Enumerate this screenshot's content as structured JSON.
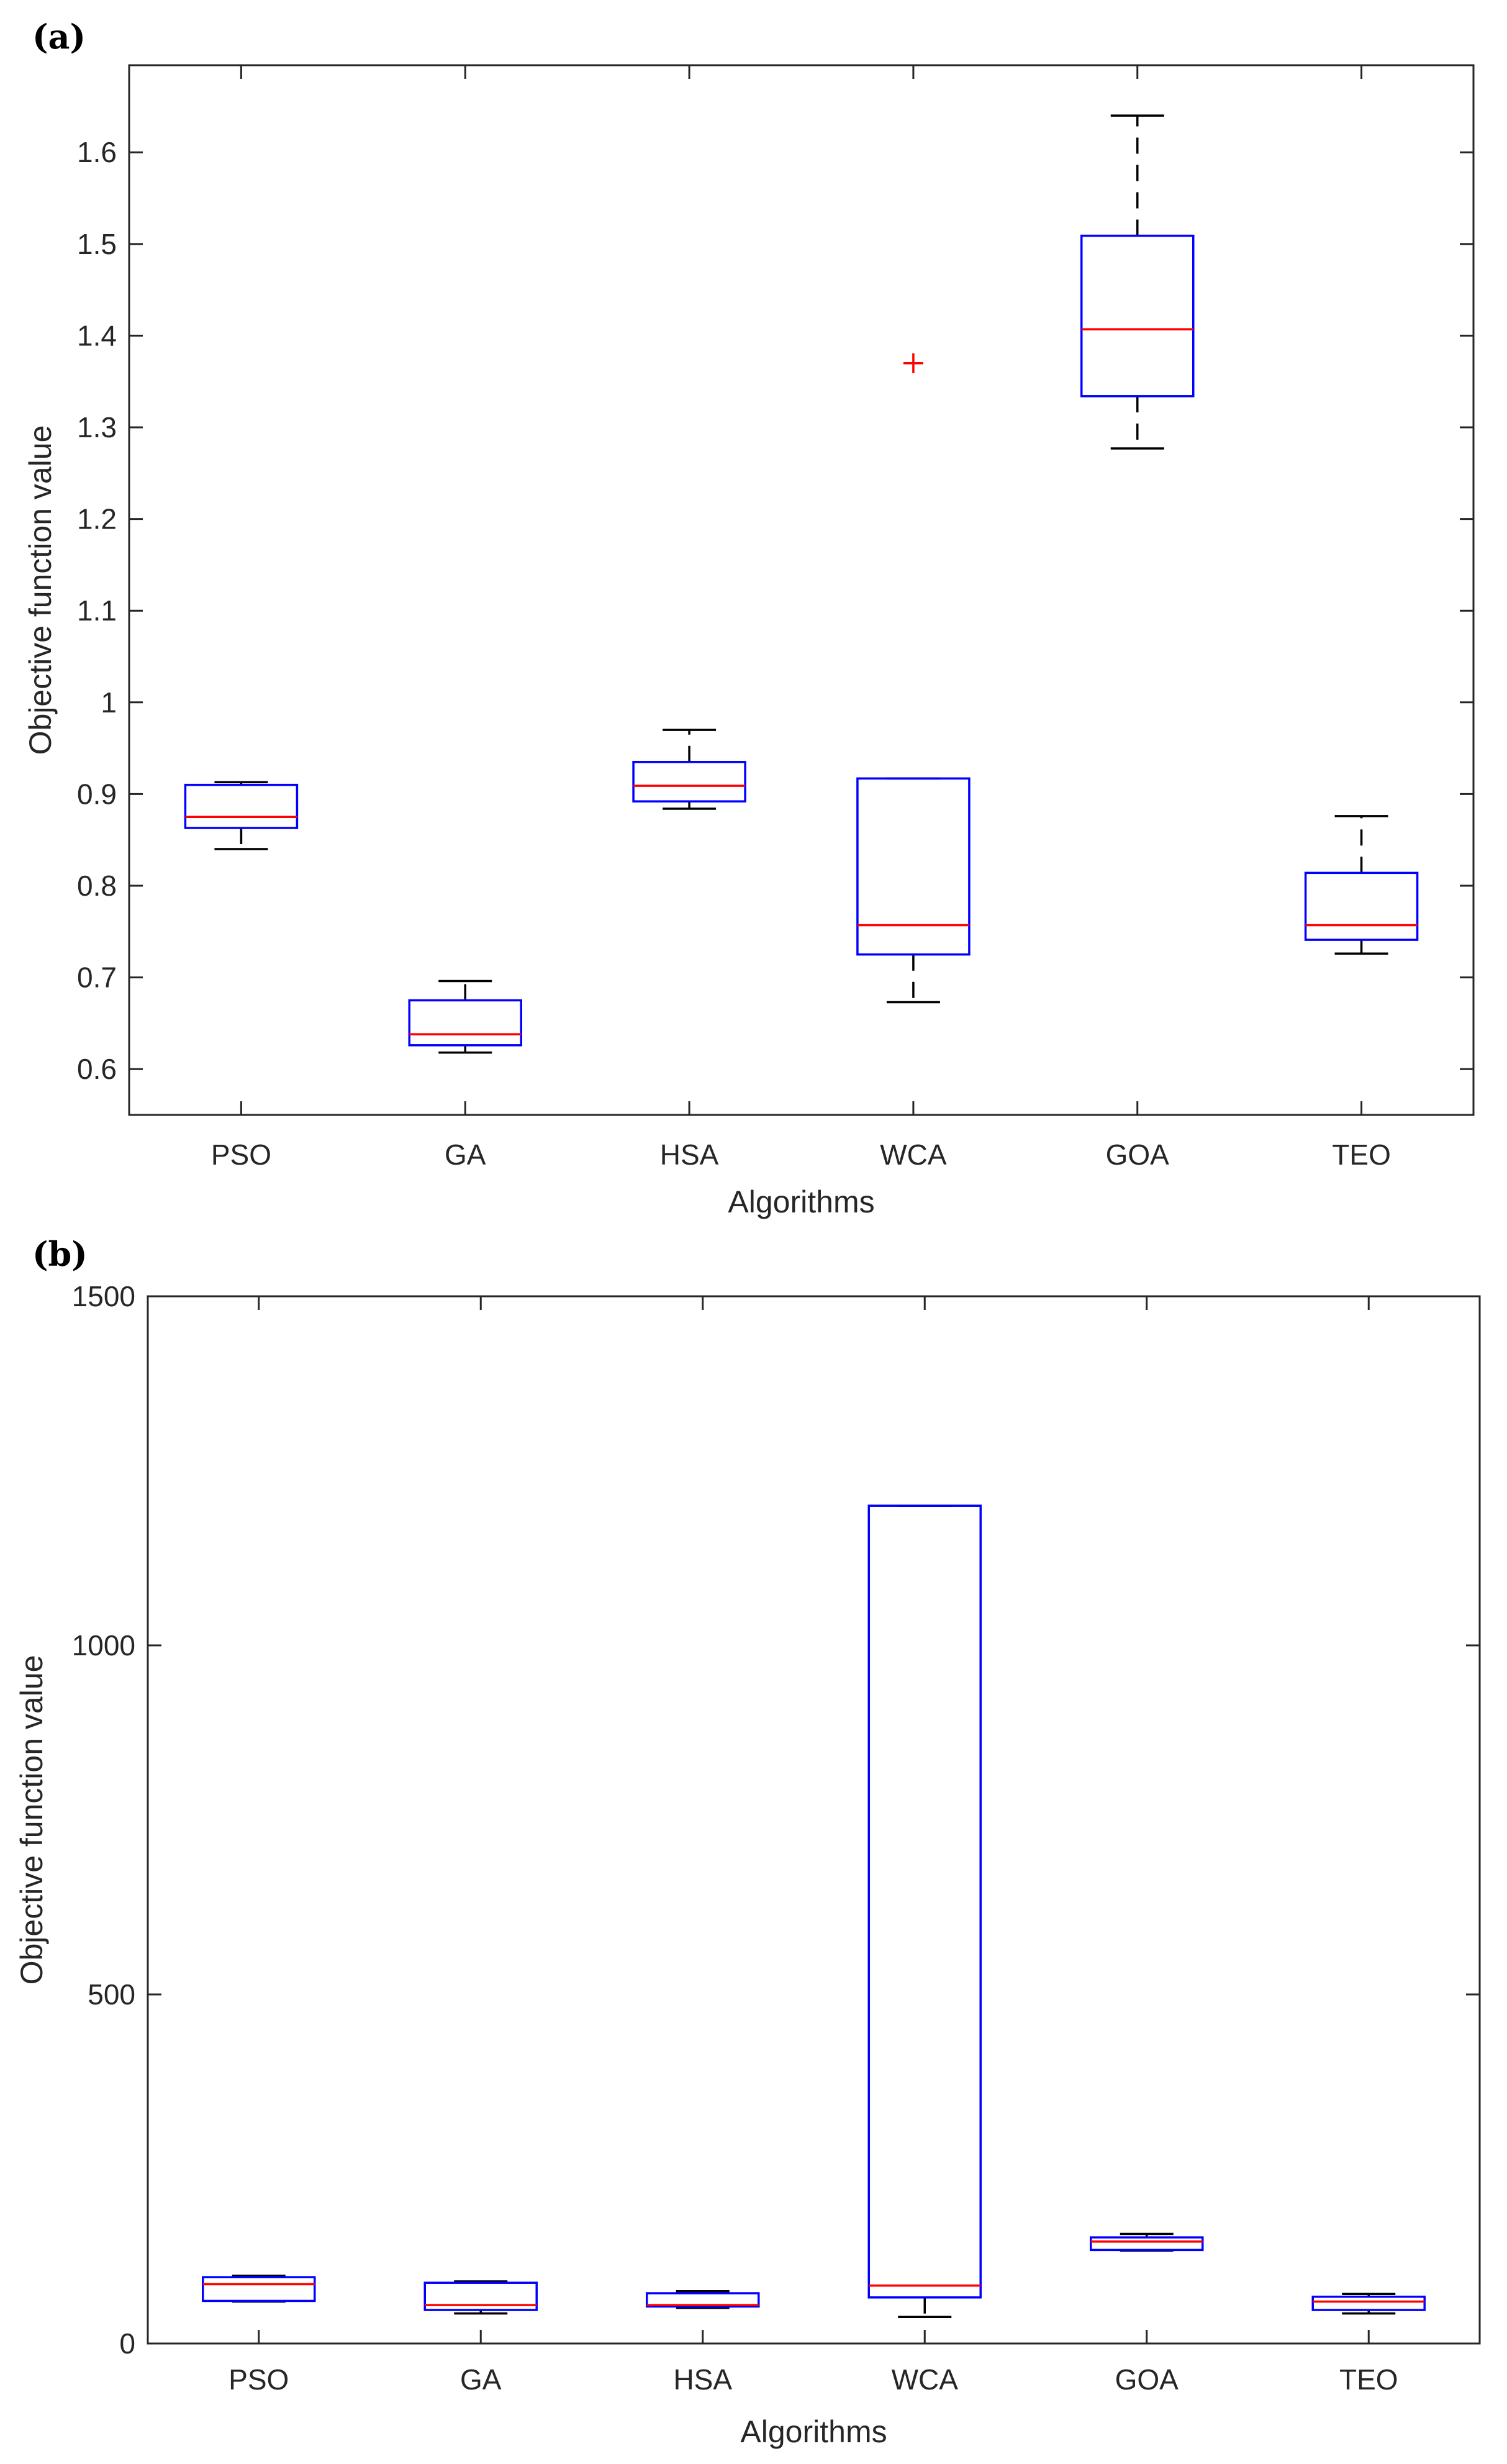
{
  "chart_data": [
    {
      "panel_label": "(a)",
      "type": "box",
      "xlabel": "Algorithms",
      "ylabel": "Objective function value",
      "ylim": [
        0.55,
        1.695
      ],
      "yticks": [
        0.6,
        0.7,
        0.8,
        0.9,
        1,
        1.1,
        1.2,
        1.3,
        1.4,
        1.5,
        1.6
      ],
      "ytick_labels": [
        "0.6",
        "0.7",
        "0.8",
        "0.9",
        "1",
        "1.1",
        "1.2",
        "1.3",
        "1.4",
        "1.5",
        "1.6"
      ],
      "categories": [
        "PSO",
        "GA",
        "HSA",
        "WCA",
        "GOA",
        "TEO"
      ],
      "boxes": [
        {
          "name": "PSO",
          "whisker_low": 0.84,
          "q1": 0.863,
          "median": 0.875,
          "q3": 0.91,
          "whisker_high": 0.913,
          "outliers": []
        },
        {
          "name": "GA",
          "whisker_low": 0.618,
          "q1": 0.626,
          "median": 0.638,
          "q3": 0.675,
          "whisker_high": 0.696,
          "outliers": []
        },
        {
          "name": "HSA",
          "whisker_low": 0.884,
          "q1": 0.892,
          "median": 0.909,
          "q3": 0.935,
          "whisker_high": 0.97,
          "outliers": []
        },
        {
          "name": "WCA",
          "whisker_low": 0.673,
          "q1": 0.725,
          "median": 0.757,
          "q3": 0.917,
          "whisker_high": 0.917,
          "outliers": [
            1.37
          ]
        },
        {
          "name": "GOA",
          "whisker_low": 1.277,
          "q1": 1.334,
          "median": 1.407,
          "q3": 1.509,
          "whisker_high": 1.64,
          "outliers": []
        },
        {
          "name": "TEO",
          "whisker_low": 0.726,
          "q1": 0.741,
          "median": 0.757,
          "q3": 0.814,
          "whisker_high": 0.876,
          "outliers": []
        }
      ]
    },
    {
      "panel_label": "(b)",
      "type": "box",
      "xlabel": "Algorithms",
      "ylabel": "Objective function value",
      "ylim": [
        0,
        1500
      ],
      "yticks": [
        0,
        500,
        1000,
        1500
      ],
      "ytick_labels": [
        "0",
        "500",
        "1000",
        "1500"
      ],
      "categories": [
        "PSO",
        "GA",
        "HSA",
        "WCA",
        "GOA",
        "TEO"
      ],
      "boxes": [
        {
          "name": "PSO",
          "whisker_low": 60,
          "q1": 61,
          "median": 85,
          "q3": 95,
          "whisker_high": 97,
          "outliers": []
        },
        {
          "name": "GA",
          "whisker_low": 43,
          "q1": 48,
          "median": 55,
          "q3": 87,
          "whisker_high": 89,
          "outliers": []
        },
        {
          "name": "HSA",
          "whisker_low": 51,
          "q1": 53,
          "median": 55,
          "q3": 72,
          "whisker_high": 75,
          "outliers": []
        },
        {
          "name": "WCA",
          "whisker_low": 38,
          "q1": 66,
          "median": 83,
          "q3": 1200,
          "whisker_high": 1200,
          "outliers": []
        },
        {
          "name": "GOA",
          "whisker_low": 133,
          "q1": 134,
          "median": 146,
          "q3": 152,
          "whisker_high": 157,
          "outliers": []
        },
        {
          "name": "TEO",
          "whisker_low": 43,
          "q1": 48,
          "median": 60,
          "q3": 67,
          "whisker_high": 71,
          "outliers": []
        }
      ]
    }
  ]
}
